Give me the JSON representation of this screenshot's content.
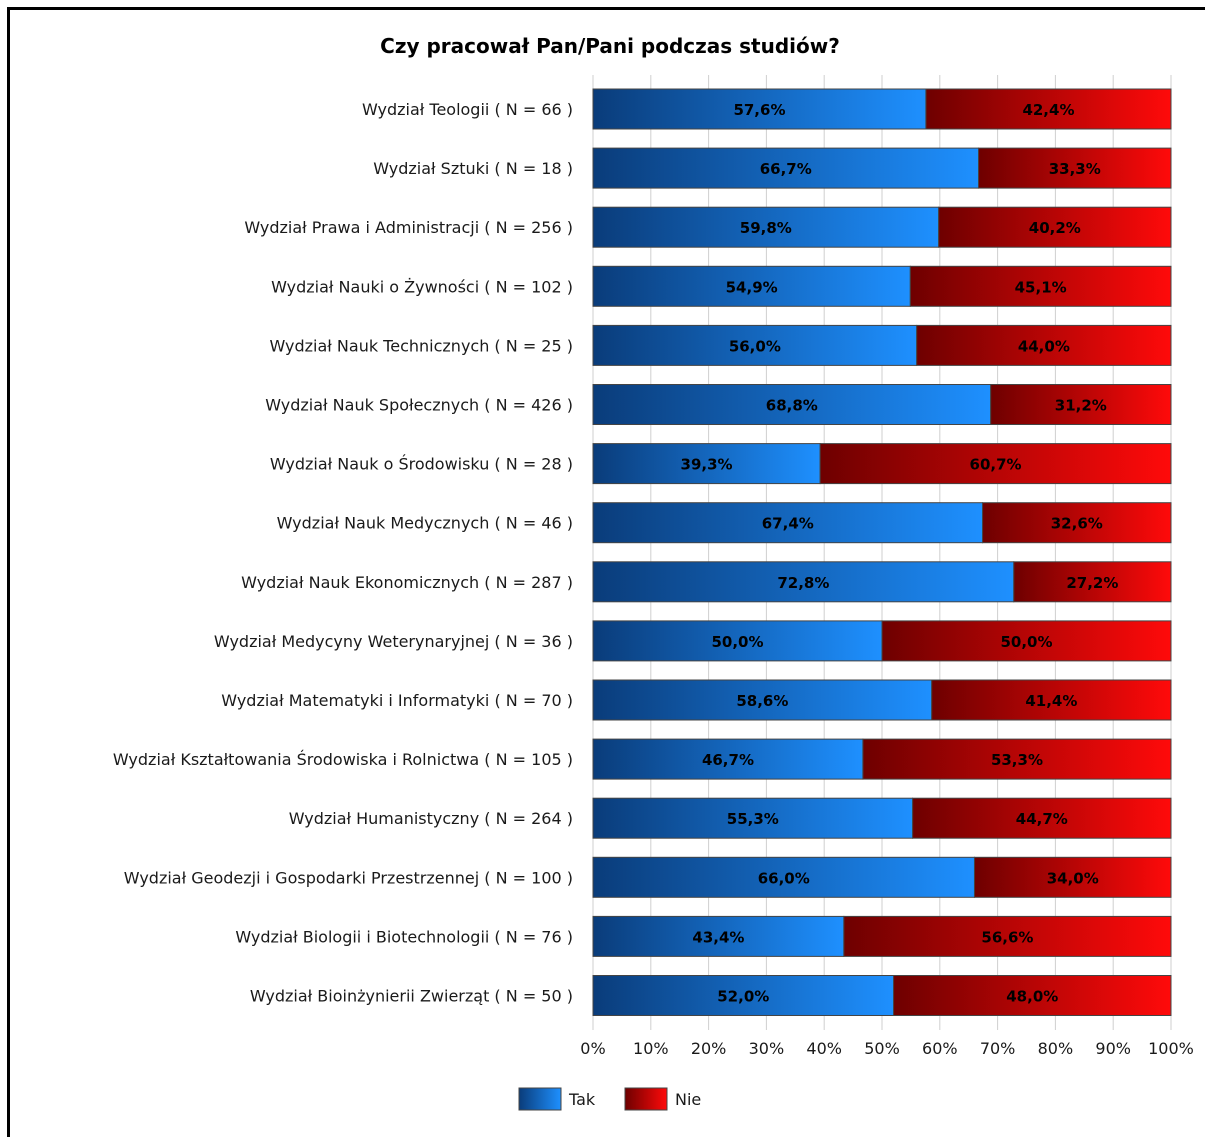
{
  "chart_data": {
    "type": "bar",
    "orientation": "horizontal",
    "stacked": true,
    "percent_stacked": true,
    "title": "Czy pracował Pan/Pani podczas studiów?",
    "categories": [
      "Wydział Teologii ( N = 66 )",
      "Wydział Sztuki ( N = 18 )",
      "Wydział Prawa i Administracji ( N = 256 )",
      "Wydział Nauki o Żywności ( N = 102 )",
      "Wydział Nauk Technicznych ( N = 25 )",
      "Wydział Nauk Społecznych ( N = 426 )",
      "Wydział Nauk o Środowisku ( N = 28 )",
      "Wydział Nauk Medycznych ( N = 46 )",
      "Wydział Nauk Ekonomicznych ( N = 287 )",
      "Wydział Medycyny Weterynaryjnej ( N = 36 )",
      "Wydział Matematyki i Informatyki ( N = 70 )",
      "Wydział Kształtowania Środowiska i Rolnictwa ( N = 105 )",
      "Wydział Humanistyczny ( N = 264 )",
      "Wydział Geodezji i Gospodarki Przestrzennej ( N = 100 )",
      "Wydział Biologii i Biotechnologii ( N = 76 )",
      "Wydział Bioinżynierii Zwierząt ( N = 50 )"
    ],
    "series": [
      {
        "name": "Tak",
        "color": "#1a7de0",
        "values": [
          57.6,
          66.7,
          59.8,
          54.9,
          56.0,
          68.8,
          39.3,
          67.4,
          72.8,
          50.0,
          58.6,
          46.7,
          55.3,
          66.0,
          43.4,
          52.0
        ],
        "labels": [
          "57,6%",
          "66,7%",
          "59,8%",
          "54,9%",
          "56,0%",
          "68,8%",
          "39,3%",
          "67,4%",
          "72,8%",
          "50,0%",
          "58,6%",
          "46,7%",
          "55,3%",
          "66,0%",
          "43,4%",
          "52,0%"
        ]
      },
      {
        "name": "Nie",
        "color": "#e01010",
        "values": [
          42.4,
          33.3,
          40.2,
          45.1,
          44.0,
          31.2,
          60.7,
          32.6,
          27.2,
          50.0,
          41.4,
          53.3,
          44.7,
          34.0,
          56.6,
          48.0
        ],
        "labels": [
          "42,4%",
          "33,3%",
          "40,2%",
          "45,1%",
          "44,0%",
          "31,2%",
          "60,7%",
          "32,6%",
          "27,2%",
          "50,0%",
          "41,4%",
          "53,3%",
          "44,7%",
          "34,0%",
          "56,6%",
          "48,0%"
        ]
      }
    ],
    "x_ticks": [
      "0%",
      "10%",
      "20%",
      "30%",
      "40%",
      "50%",
      "60%",
      "70%",
      "80%",
      "90%",
      "100%"
    ],
    "xlim": [
      0,
      100
    ],
    "grid": true,
    "legend": "bottom-center"
  }
}
